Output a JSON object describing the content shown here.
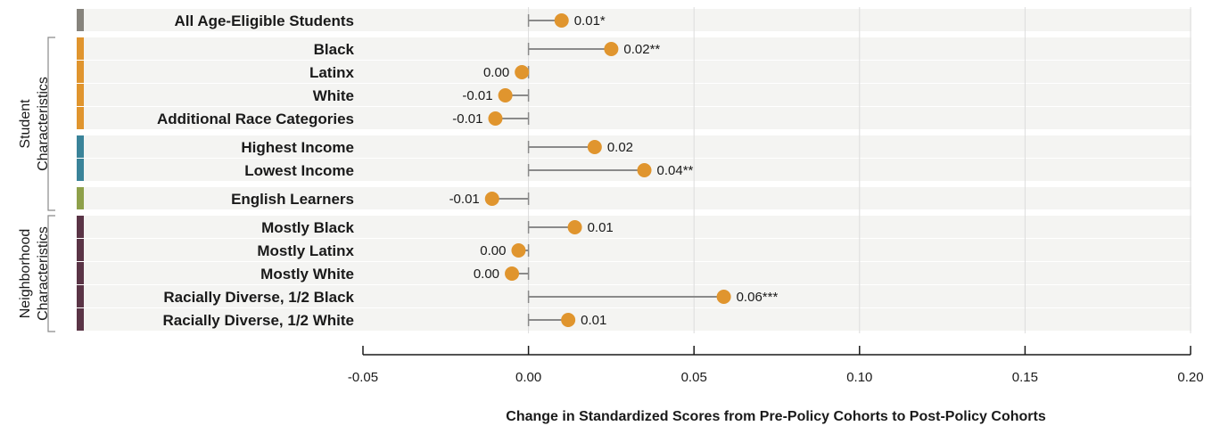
{
  "chart_data": {
    "type": "dot",
    "xlabel": "Change in Standardized Scores from Pre-Policy Cohorts to Post-Policy Cohorts",
    "xlim": [
      -0.05,
      0.2
    ],
    "xticks": [
      "-0.05",
      "0.00",
      "0.05",
      "0.10",
      "0.15",
      "0.20"
    ],
    "xtick_values": [
      -0.05,
      0.0,
      0.05,
      0.1,
      0.15,
      0.2
    ],
    "grid": true,
    "groups": [
      {
        "label": "Student Characteristics"
      },
      {
        "label": "Neighborhood Characteristics"
      }
    ],
    "rows": [
      {
        "category": "All Age-Eligible Students",
        "value": 0.01,
        "label": "0.01*",
        "band": "gray"
      },
      {
        "category": "Black",
        "value": 0.025,
        "label": "0.02**",
        "band": "orange"
      },
      {
        "category": "Latinx",
        "value": -0.002,
        "label": "0.00",
        "band": "orange"
      },
      {
        "category": "White",
        "value": -0.007,
        "label": "-0.01",
        "band": "orange"
      },
      {
        "category": "Additional Race Categories",
        "value": -0.01,
        "label": "-0.01",
        "band": "orange"
      },
      {
        "category": "Highest Income",
        "value": 0.02,
        "label": "0.02",
        "band": "teal"
      },
      {
        "category": "Lowest Income",
        "value": 0.035,
        "label": "0.04**",
        "band": "teal"
      },
      {
        "category": "English Learners",
        "value": -0.011,
        "label": "-0.01",
        "band": "green"
      },
      {
        "category": "Mostly Black",
        "value": 0.014,
        "label": "0.01",
        "band": "plum"
      },
      {
        "category": "Mostly Latinx",
        "value": -0.003,
        "label": "0.00",
        "band": "plum"
      },
      {
        "category": "Mostly White",
        "value": -0.005,
        "label": "0.00",
        "band": "plum"
      },
      {
        "category": "Racially Diverse, 1/2 Black",
        "value": 0.059,
        "label": "0.06***",
        "band": "plum"
      },
      {
        "category": "Racially Diverse, 1/2 White",
        "value": 0.012,
        "label": "0.01",
        "band": "plum"
      }
    ]
  },
  "colors": {
    "dot": "#e0952e",
    "stem": "#8a8a8a",
    "row_bg": "#f4f4f2",
    "grid": "#dcdcdc",
    "bands": {
      "gray": "#86837c",
      "orange": "#e0952e",
      "teal": "#3a8399",
      "green": "#8ea04a",
      "plum": "#5a3446"
    }
  }
}
